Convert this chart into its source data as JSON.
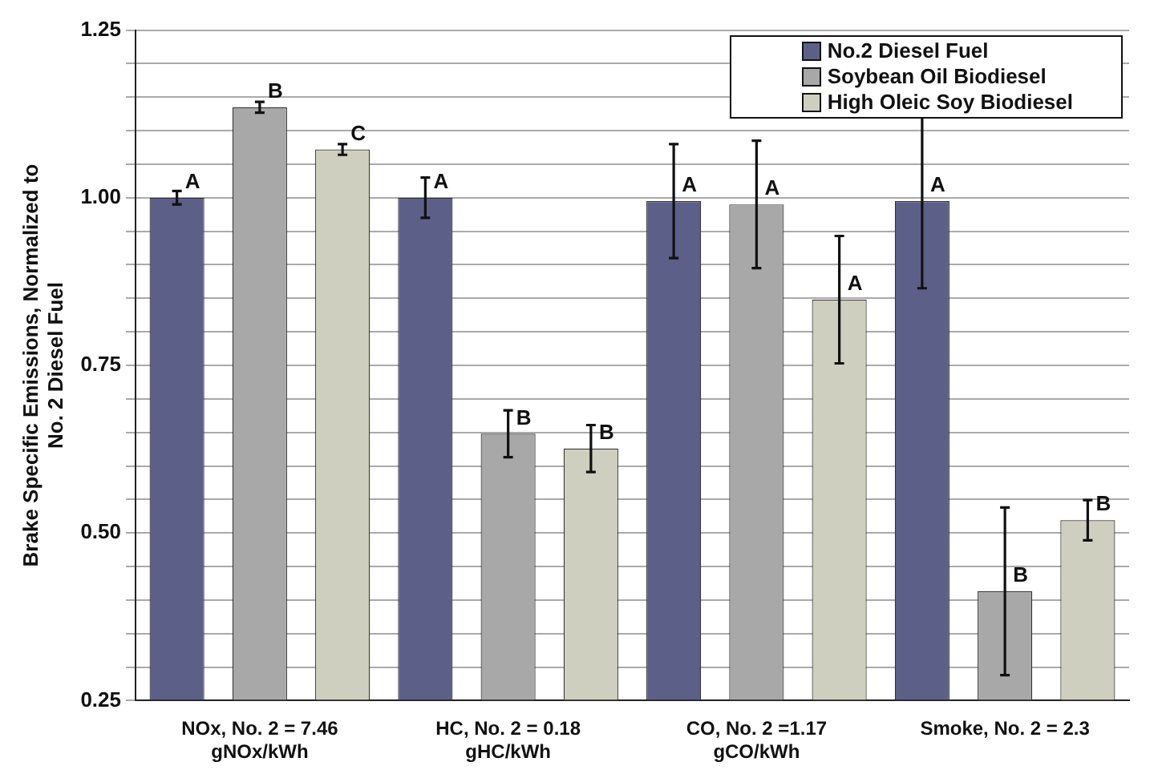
{
  "chart_data": {
    "type": "bar",
    "ylabel": "Brake Specific Emissions, Normalized to\nNo. 2 Diesel Fuel",
    "categories": [
      "NOx, No. 2 = 7.46\ngNOx/kWh",
      "HC, No. 2 = 0.18\ngHC/kWh",
      "CO, No. 2 =1.17\ngCO/kWh",
      "Smoke, No. 2 = 2.3"
    ],
    "series": [
      {
        "name": "No.2 Diesel Fuel",
        "color": "#5c6088",
        "values": [
          1.0,
          1.0,
          0.995,
          0.995
        ],
        "errors": [
          0.01,
          0.03,
          0.085,
          0.13
        ],
        "value_labels": [
          "A",
          "A",
          "A",
          "A"
        ]
      },
      {
        "name": "Soybean Oil Biodiesel",
        "color": "#a8a8a8",
        "values": [
          1.135,
          0.648,
          0.99,
          0.413
        ],
        "errors": [
          0.008,
          0.035,
          0.095,
          0.125
        ],
        "value_labels": [
          "B",
          "B",
          "A",
          "B"
        ]
      },
      {
        "name": "High Oleic Soy Biodiesel",
        "color": "#cfcfbf",
        "values": [
          1.072,
          0.626,
          0.848,
          0.519
        ],
        "errors": [
          0.008,
          0.035,
          0.095,
          0.03
        ],
        "value_labels": [
          "C",
          "B",
          "A",
          "B"
        ]
      }
    ],
    "ylim": [
      0.25,
      1.25
    ],
    "yticks": [
      {
        "value": 0.25,
        "label": "0.25"
      },
      {
        "value": 0.3,
        "label": null
      },
      {
        "value": 0.35,
        "label": null
      },
      {
        "value": 0.4,
        "label": null
      },
      {
        "value": 0.45,
        "label": null
      },
      {
        "value": 0.5,
        "label": "0.50"
      },
      {
        "value": 0.55,
        "label": null
      },
      {
        "value": 0.6,
        "label": null
      },
      {
        "value": 0.65,
        "label": null
      },
      {
        "value": 0.7,
        "label": null
      },
      {
        "value": 0.75,
        "label": "0.75"
      },
      {
        "value": 0.8,
        "label": null
      },
      {
        "value": 0.85,
        "label": null
      },
      {
        "value": 0.9,
        "label": null
      },
      {
        "value": 0.95,
        "label": null
      },
      {
        "value": 1.0,
        "label": "1.00"
      },
      {
        "value": 1.05,
        "label": null
      },
      {
        "value": 1.1,
        "label": null
      },
      {
        "value": 1.15,
        "label": null
      },
      {
        "value": 1.2,
        "label": null
      },
      {
        "value": 1.25,
        "label": "1.25"
      }
    ],
    "grid": "y",
    "legend": "top right"
  }
}
